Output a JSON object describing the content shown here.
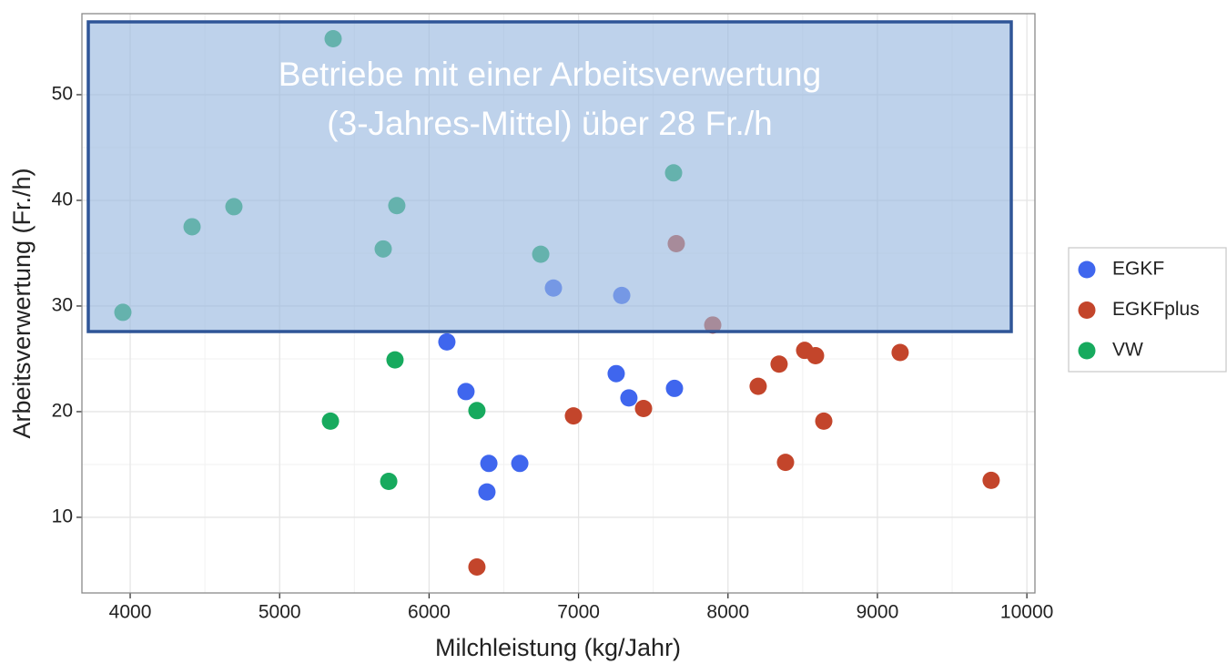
{
  "chart_data": {
    "type": "scatter",
    "xlabel": "Milchleistung (kg/Jahr)",
    "ylabel": "Arbeitsverwertung (Fr./h)",
    "xlim": [
      3677,
      10054
    ],
    "ylim": [
      2.84,
      57.67
    ],
    "xticks": [
      4000,
      5000,
      6000,
      7000,
      8000,
      9000,
      10000
    ],
    "yticks": [
      10,
      20,
      30,
      40,
      50
    ],
    "grid": true,
    "legend": "right",
    "annotation": [
      "Betriebe mit einer Arbeitsverwertung",
      "(3-Jahres-Mittel) über 28 Fr./h"
    ],
    "series": [
      {
        "name": "EGKF",
        "color": "#3f66ee",
        "x": [
          6832,
          7289,
          6119,
          6247,
          7252,
          7337,
          7642,
          6400,
          6607,
          6387
        ],
        "values": [
          31.7,
          31.0,
          26.6,
          21.9,
          23.6,
          21.3,
          22.2,
          15.1,
          15.1,
          12.4
        ]
      },
      {
        "name": "EGKFplus",
        "color": "#c3452b",
        "x": [
          7654,
          7898,
          6966,
          7435,
          8202,
          8342,
          8513,
          8586,
          9152,
          8641,
          8385,
          9761,
          6320
        ],
        "values": [
          35.9,
          28.2,
          19.6,
          20.3,
          22.4,
          24.5,
          25.8,
          25.3,
          25.6,
          19.1,
          15.2,
          13.5,
          5.3
        ]
      },
      {
        "name": "VW",
        "color": "#17aa5e",
        "x": [
          5358,
          7636,
          4694,
          5784,
          4414,
          5693,
          6747,
          3951,
          5772,
          5340,
          6320,
          5730
        ],
        "values": [
          55.3,
          42.6,
          39.4,
          39.5,
          37.5,
          35.4,
          34.9,
          29.4,
          24.9,
          19.1,
          20.1,
          13.4
        ]
      }
    ]
  }
}
